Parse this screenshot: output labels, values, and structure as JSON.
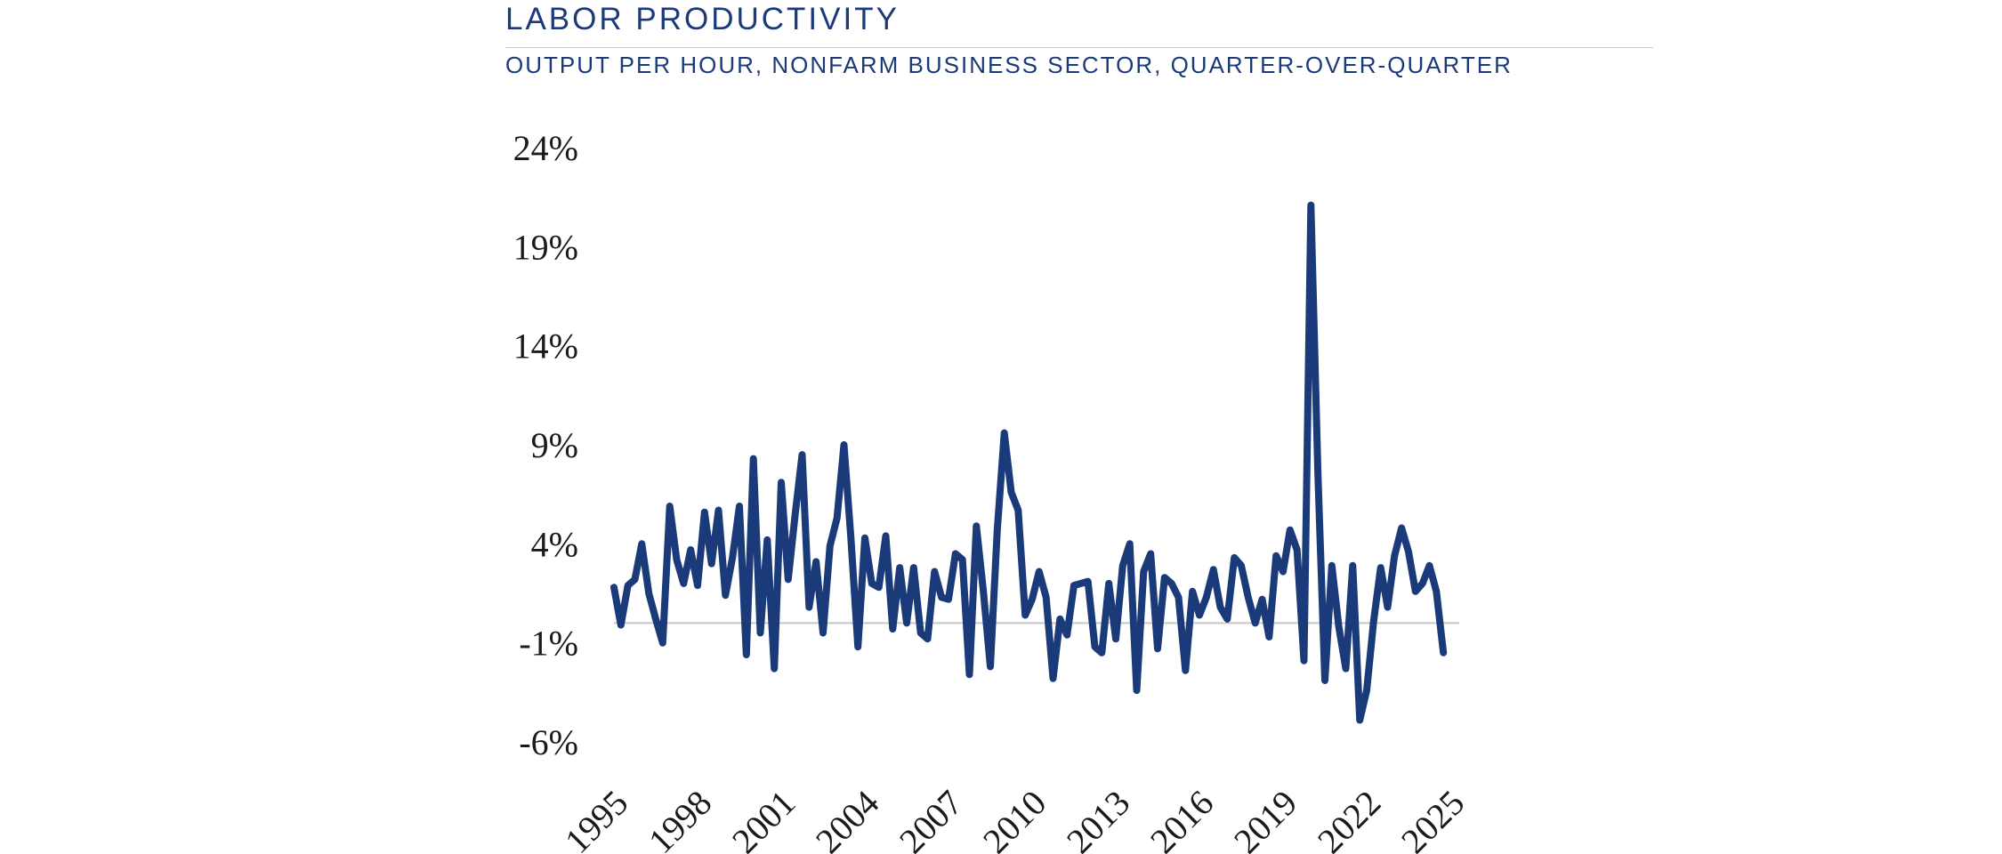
{
  "header": {
    "title": "LABOR PRODUCTIVITY",
    "subtitle": "OUTPUT PER HOUR, NONFARM BUSINESS SECTOR, QUARTER-OVER-QUARTER"
  },
  "colors": {
    "title": "#1b3a7a",
    "line": "#1b3a7a",
    "zero_line": "#c8c8c8",
    "tick_text": "#1a1a1a"
  },
  "chart_data": {
    "type": "line",
    "title": "LABOR PRODUCTIVITY",
    "subtitle": "OUTPUT PER HOUR, NONFARM BUSINESS SECTOR, QUARTER-OVER-QUARTER",
    "xlabel": "",
    "ylabel": "",
    "x_start": 1995.0,
    "x_step": 0.25,
    "xlim": [
      1995,
      2025
    ],
    "ylim": [
      -6,
      24
    ],
    "y_ticks": [
      -6,
      -1,
      4,
      9,
      14,
      19,
      24
    ],
    "y_tick_labels": [
      "-6%",
      "-1%",
      "4%",
      "9%",
      "14%",
      "19%",
      "24%"
    ],
    "x_ticks": [
      1995,
      1998,
      2001,
      2004,
      2007,
      2010,
      2013,
      2016,
      2019,
      2022,
      2025
    ],
    "x_tick_labels": [
      "1995",
      "1998",
      "2001",
      "2004",
      "2007",
      "2010",
      "2013",
      "2016",
      "2019",
      "2022",
      "2025"
    ],
    "x_tick_rotation": -45,
    "zero_line": true,
    "grid": false,
    "legend": "none",
    "series": [
      {
        "values": [
          1.8,
          -0.1,
          1.9,
          2.2,
          4.0,
          1.5,
          0.2,
          -1.0,
          5.9,
          3.2,
          2.0,
          3.7,
          1.9,
          5.6,
          3.0,
          5.7,
          1.4,
          3.3,
          5.9,
          -1.6,
          8.3,
          -0.5,
          4.2,
          -2.3,
          7.1,
          2.2,
          5.5,
          8.5,
          0.8,
          3.1,
          -0.5,
          3.9,
          5.3,
          9.0,
          4.3,
          -1.2,
          4.3,
          2.0,
          1.8,
          4.4,
          -0.3,
          2.8,
          0.0,
          2.8,
          -0.5,
          -0.8,
          2.6,
          1.3,
          1.2,
          3.5,
          3.2,
          -2.6,
          4.9,
          1.6,
          -2.2,
          4.7,
          9.6,
          6.6,
          5.7,
          0.4,
          1.2,
          2.6,
          1.3,
          -2.8,
          0.2,
          -0.6,
          1.9,
          2.0,
          2.1,
          -1.2,
          -1.5,
          2.0,
          -0.8,
          2.9,
          4.0,
          -3.4,
          2.6,
          3.5,
          -1.3,
          2.3,
          2.0,
          1.3,
          -2.4,
          1.6,
          0.4,
          1.3,
          2.7,
          0.8,
          0.2,
          3.3,
          2.9,
          1.3,
          0.0,
          1.2,
          -0.7,
          3.4,
          2.6,
          4.7,
          3.7,
          -1.9,
          21.1,
          7.5,
          -2.9,
          2.9,
          -0.2,
          -2.3,
          2.9,
          -4.9,
          -3.4,
          0.1,
          2.8,
          0.8,
          3.4,
          4.8,
          3.6,
          1.6,
          2.0,
          2.9,
          1.6,
          -1.5
        ]
      }
    ]
  }
}
